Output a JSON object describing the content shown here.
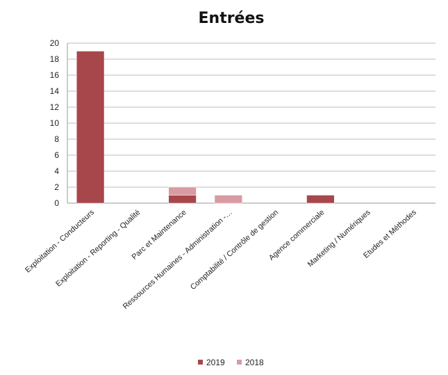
{
  "chart_data": {
    "type": "bar",
    "title": "Entrées",
    "xlabel": "",
    "ylabel": "",
    "ylim": [
      0,
      20
    ],
    "yticks": [
      0,
      2,
      4,
      6,
      8,
      10,
      12,
      14,
      16,
      18,
      20
    ],
    "grid": true,
    "stacked": true,
    "legend_position": "bottom",
    "categories": [
      "Exploitation - Conducteurs",
      "Exploitation - Reporting - Qualité",
      "Parc et Maintenance",
      "Ressources Humaines - Administration -…",
      "Comptabilité / Contrôle de gestion",
      "Agence commerciale",
      "Marketing / Numériques",
      "Etudes et Méthodes"
    ],
    "series": [
      {
        "name": "2019",
        "color": "#a8474b",
        "values": [
          19,
          0,
          1,
          0,
          0,
          1,
          0,
          0
        ]
      },
      {
        "name": "2018",
        "color": "#d99aa2",
        "values": [
          0,
          0,
          1,
          1,
          0,
          0,
          0,
          0
        ]
      }
    ]
  }
}
